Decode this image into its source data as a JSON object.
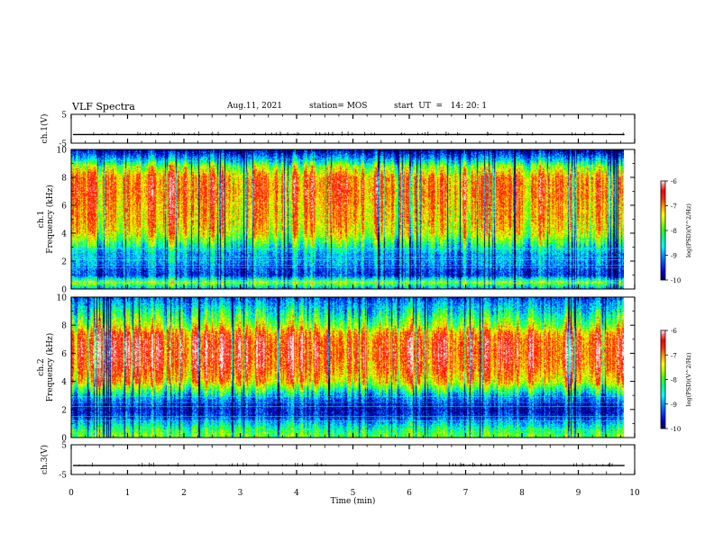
{
  "header": {
    "title": "VLF Spectra",
    "date": "Aug.11, 2021",
    "station": "station= MOS",
    "start": "start  UT  =   14: 20: 1"
  },
  "chart_data": [
    {
      "type": "line",
      "panel": "ch1-waveform",
      "ylabel": "ch.1(V)",
      "ylim": [
        -5,
        5
      ],
      "yticks": [
        "5",
        "-5"
      ],
      "xlim": [
        0,
        10
      ],
      "series": [
        {
          "values": "flat trace near -2 V across 0–9.8 min with sparse tick spikes"
        }
      ]
    },
    {
      "type": "heatmap",
      "panel": "ch1-spectrogram",
      "ylabel": "ch.1\nFrequency (kHz)",
      "ylim": [
        0,
        10
      ],
      "yticks": [
        "0",
        "2",
        "4",
        "6",
        "8",
        "10"
      ],
      "xlim": [
        0,
        10
      ],
      "data_extent_min": 9.8,
      "colorbar": {
        "label": "log(PSD)(V^2/Hz)",
        "range": [
          -10,
          -6
        ],
        "ticks": [
          "-6",
          "-7",
          "-8",
          "-9",
          "-10"
        ]
      },
      "intensity_profile": {
        "freq_kHz": [
          0,
          0.5,
          1,
          1.5,
          2,
          2.5,
          3,
          3.5,
          4,
          5,
          6,
          7,
          8,
          8.8,
          9.3,
          10
        ],
        "log_psd": [
          -9.2,
          -7.8,
          -9.4,
          -9.3,
          -9.0,
          -9.0,
          -8.6,
          -8.1,
          -7.6,
          -7.3,
          -7.2,
          -7.0,
          -7.1,
          -7.9,
          -8.9,
          -9.8
        ]
      },
      "horizontal_lines_kHz": [
        0.4,
        0.6,
        1.5,
        1.7,
        2.1,
        2.3,
        2.9
      ]
    },
    {
      "type": "heatmap",
      "panel": "ch2-spectrogram",
      "ylabel": "ch.2\nFrequency (kHz)",
      "ylim": [
        0,
        10
      ],
      "yticks": [
        "0",
        "2",
        "4",
        "6",
        "8",
        "10"
      ],
      "xlim": [
        0,
        10
      ],
      "data_extent_min": 9.8,
      "colorbar": {
        "label": "log(PSD)(V^2/Hz)",
        "range": [
          -10,
          -6
        ],
        "ticks": [
          "-6",
          "-7",
          "-8",
          "-9",
          "-10"
        ]
      },
      "intensity_profile": {
        "freq_kHz": [
          0,
          0.5,
          1,
          1.5,
          2,
          2.5,
          3,
          3.5,
          4,
          5,
          6,
          7,
          7.5,
          8,
          9,
          10
        ],
        "log_psd": [
          -8.0,
          -8.3,
          -8.8,
          -9.4,
          -9.6,
          -9.4,
          -8.9,
          -8.2,
          -7.4,
          -6.9,
          -6.7,
          -6.8,
          -7.1,
          -7.8,
          -8.6,
          -9.3
        ]
      },
      "horizontal_lines_kHz": [
        1.2,
        1.5,
        2.2,
        2.5,
        2.9
      ]
    },
    {
      "type": "line",
      "panel": "ch3-waveform",
      "ylabel": "ch.3(V)",
      "ylim": [
        -5,
        5
      ],
      "yticks": [
        "5",
        "-5"
      ],
      "xlim": [
        0,
        10
      ],
      "xlabel": "Time (min)",
      "xticks": [
        "0",
        "1",
        "2",
        "3",
        "4",
        "5",
        "6",
        "7",
        "8",
        "9",
        "10"
      ],
      "series": [
        {
          "values": "flat trace near -2 V across 0–9.8 min with sparse tick spikes"
        }
      ]
    }
  ],
  "colors": {
    "colormap": [
      "#000064",
      "#0000c8",
      "#0040ff",
      "#00a0ff",
      "#00ffff",
      "#00ff80",
      "#40ff00",
      "#c0ff00",
      "#ffff00",
      "#ffa000",
      "#ff3000",
      "#ff0000",
      "#ff8080",
      "#ffffff"
    ],
    "axis": "#000000",
    "trace": "#000000"
  }
}
